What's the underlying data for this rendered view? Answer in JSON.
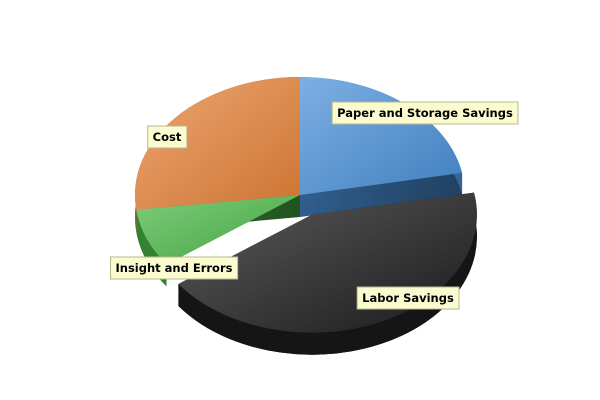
{
  "chart_data": {
    "type": "pie",
    "style": "3d-exploded",
    "title": "",
    "slices": [
      {
        "label": "Paper and Storage Savings",
        "value": 22,
        "color": "#4a90d9",
        "exploded": false
      },
      {
        "label": "Labor Savings",
        "value": 43,
        "color": "#1e1e20",
        "exploded": true
      },
      {
        "label": "Insight and Errors",
        "value": 8,
        "color": "#4cb848",
        "exploded": false
      },
      {
        "label": "Cost",
        "value": 27,
        "color": "#e8843a",
        "exploded": false
      }
    ],
    "label_box_fill": "#fbfbd0"
  }
}
